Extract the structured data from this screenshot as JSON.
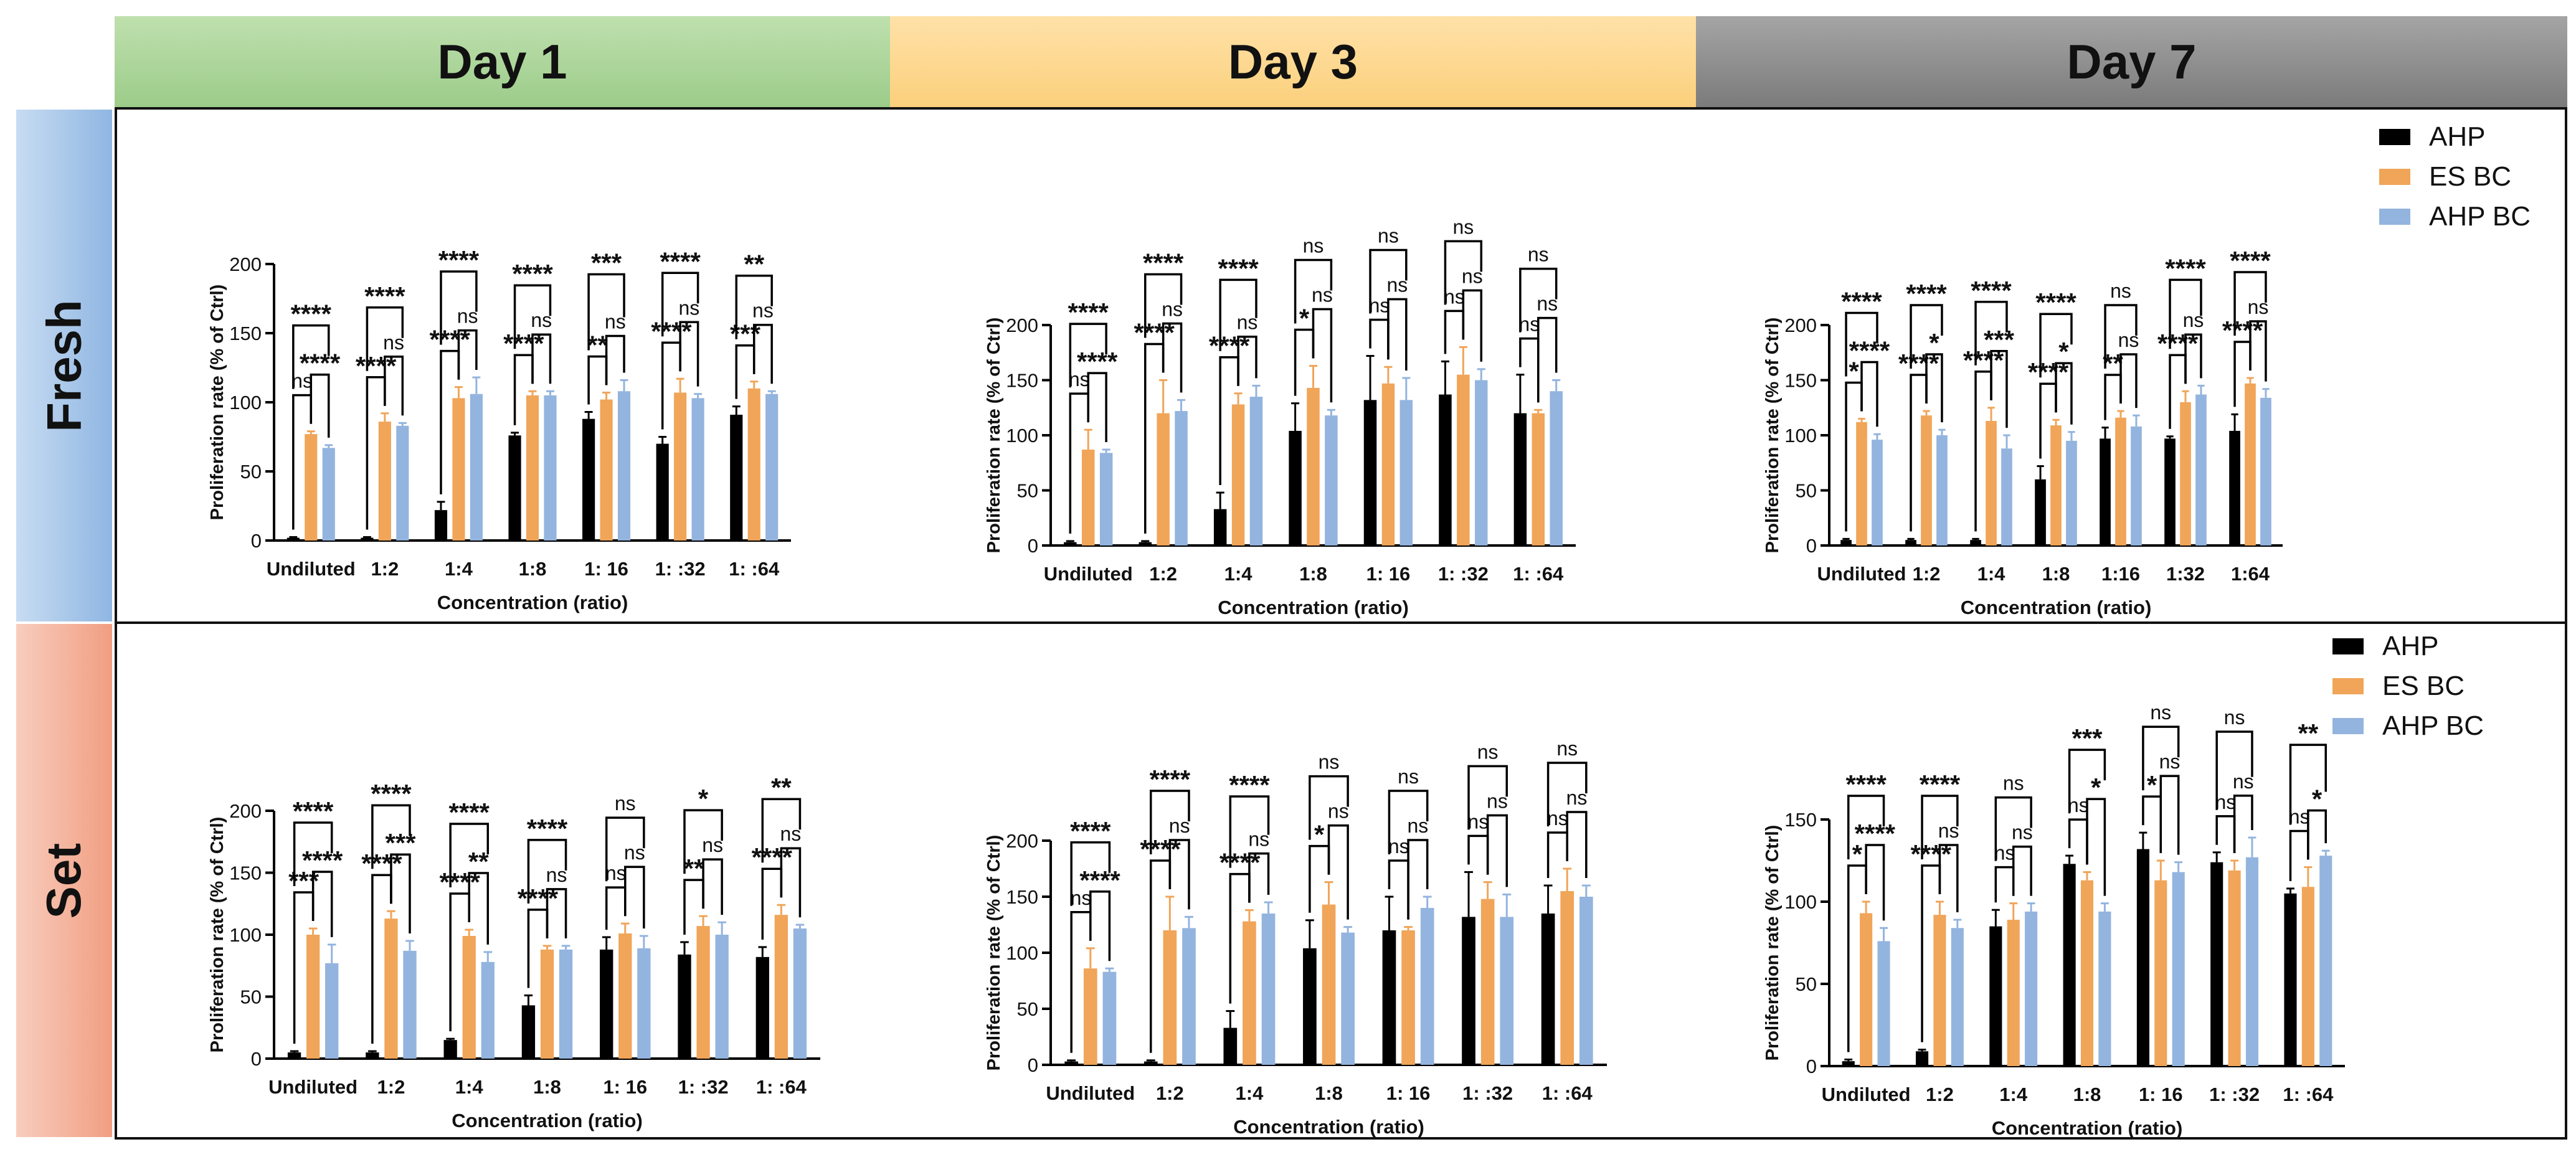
{
  "columns": [
    "Day 1",
    "Day 3",
    "Day 7"
  ],
  "rows": [
    "Fresh",
    "Set"
  ],
  "colors": {
    "AHP": "#000000",
    "ES BC": "#F0A559",
    "AHP BC": "#93B4DE",
    "day1_header": "#A9D39B",
    "day3_header": "#FCD78F",
    "day7_header": "#8E8E8E",
    "fresh_header": "#9DC0E5",
    "set_header": "#F4A98F"
  },
  "legend": [
    "AHP",
    "ES BC",
    "AHP BC"
  ],
  "chart_data": [
    {
      "type": "bar",
      "panel": "Fresh / Day 1",
      "categories": [
        "Undiluted",
        "1:2",
        "1:4",
        "1:8",
        "1: 16",
        "1: :32",
        "1: :64"
      ],
      "xlabel": "Concentration (ratio)",
      "ylabel": "Proliferation rate (% of Ctrl)",
      "ylim": [
        0,
        200
      ],
      "yticks": [
        "0",
        "50",
        "100",
        "150",
        "200"
      ],
      "series": [
        {
          "name": "AHP",
          "values": [
            2,
            2,
            22,
            76,
            88,
            70,
            91
          ],
          "errors": [
            0.5,
            0.5,
            6,
            2,
            5,
            5,
            6
          ]
        },
        {
          "name": "ES BC",
          "values": [
            77,
            86,
            103,
            105,
            102,
            107,
            110
          ],
          "errors": [
            2,
            6,
            8,
            3,
            5,
            10,
            5
          ]
        },
        {
          "name": "AHP BC",
          "values": [
            67,
            83,
            106,
            105,
            108,
            103,
            106
          ],
          "errors": [
            2,
            2,
            12,
            3,
            8,
            3,
            2
          ]
        }
      ],
      "annotations": [
        [
          "****",
          "ns",
          "****"
        ],
        [
          "****",
          "****",
          "ns"
        ],
        [
          "****",
          "****",
          "ns"
        ],
        [
          "****",
          "****",
          "ns"
        ],
        [
          "***",
          "**",
          "ns"
        ],
        [
          "****",
          "****",
          "ns"
        ],
        [
          "**",
          "***",
          "ns"
        ]
      ]
    },
    {
      "type": "bar",
      "panel": "Fresh / Day 3",
      "categories": [
        "Undiluted",
        "1:2",
        "1:4",
        "1:8",
        "1: 16",
        "1: :32",
        "1: :64"
      ],
      "xlabel": "Concentration (ratio)",
      "ylabel": "Proliferation rate (% of Ctrl)",
      "ylim": [
        0,
        200
      ],
      "yticks": [
        "0",
        "50",
        "100",
        "150",
        "200"
      ],
      "series": [
        {
          "name": "AHP",
          "values": [
            3,
            3,
            33,
            104,
            132,
            137,
            120
          ],
          "errors": [
            1,
            1,
            15,
            25,
            40,
            30,
            35
          ]
        },
        {
          "name": "ES BC",
          "values": [
            87,
            120,
            128,
            143,
            147,
            155,
            120
          ],
          "errors": [
            18,
            30,
            10,
            20,
            15,
            25,
            3
          ]
        },
        {
          "name": "AHP BC",
          "values": [
            84,
            122,
            135,
            118,
            132,
            150,
            140
          ],
          "errors": [
            3,
            10,
            10,
            5,
            20,
            10,
            10
          ]
        }
      ],
      "annotations": [
        [
          "****",
          "ns",
          "****"
        ],
        [
          "****",
          "****",
          "ns"
        ],
        [
          "****",
          "****",
          "ns"
        ],
        [
          "ns",
          "*",
          "ns"
        ],
        [
          "ns",
          "ns",
          "ns"
        ],
        [
          "ns",
          "ns",
          "ns"
        ],
        [
          "ns",
          "ns",
          "ns"
        ]
      ]
    },
    {
      "type": "bar",
      "panel": "Fresh / Day 7",
      "categories": [
        "Undiluted",
        "1:2",
        "1:4",
        "1:8",
        "1:16",
        "1:32",
        "1:64"
      ],
      "xlabel": "Concentration (ratio)",
      "ylabel": "Proliferation rate (% of Ctrl)",
      "ylim": [
        0,
        200
      ],
      "yticks": [
        "0",
        "50",
        "100",
        "150",
        "200"
      ],
      "series": [
        {
          "name": "AHP",
          "values": [
            5,
            5,
            5,
            60,
            97,
            97,
            104
          ],
          "errors": [
            1,
            1,
            1,
            12,
            10,
            2,
            15
          ]
        },
        {
          "name": "ES BC",
          "values": [
            112,
            118,
            113,
            109,
            116,
            130,
            147
          ],
          "errors": [
            3,
            4,
            12,
            5,
            6,
            10,
            5
          ]
        },
        {
          "name": "AHP BC",
          "values": [
            96,
            100,
            88,
            95,
            108,
            137,
            134
          ],
          "errors": [
            5,
            5,
            12,
            8,
            10,
            8,
            8
          ]
        }
      ],
      "annotations": [
        [
          "****",
          "*",
          "****"
        ],
        [
          "****",
          "****",
          "*"
        ],
        [
          "****",
          "****",
          "***"
        ],
        [
          "****",
          "****",
          "*"
        ],
        [
          "ns",
          "**",
          "ns"
        ],
        [
          "****",
          "****",
          "ns"
        ],
        [
          "****",
          "****",
          "ns"
        ]
      ]
    },
    {
      "type": "bar",
      "panel": "Set / Day 1",
      "categories": [
        "Undiluted",
        "1:2",
        "1:4",
        "1:8",
        "1: 16",
        "1: :32",
        "1: :64"
      ],
      "xlabel": "Concentration (ratio)",
      "ylabel": "Proliferation rate (% of Ctrl)",
      "ylim": [
        0,
        200
      ],
      "yticks": [
        "0",
        "50",
        "100",
        "150",
        "200"
      ],
      "series": [
        {
          "name": "AHP",
          "values": [
            5,
            5,
            15,
            43,
            88,
            84,
            82
          ],
          "errors": [
            1,
            1,
            1,
            8,
            10,
            10,
            8
          ]
        },
        {
          "name": "ES BC",
          "values": [
            100,
            113,
            99,
            88,
            101,
            107,
            116
          ],
          "errors": [
            5,
            6,
            5,
            3,
            8,
            8,
            8
          ]
        },
        {
          "name": "AHP BC",
          "values": [
            77,
            87,
            78,
            88,
            89,
            100,
            105
          ],
          "errors": [
            15,
            8,
            8,
            3,
            10,
            10,
            3
          ]
        }
      ],
      "annotations": [
        [
          "****",
          "***",
          "****"
        ],
        [
          "****",
          "****",
          "***"
        ],
        [
          "****",
          "****",
          "**"
        ],
        [
          "****",
          "****",
          "ns"
        ],
        [
          "ns",
          "ns",
          "ns"
        ],
        [
          "*",
          "**",
          "ns"
        ],
        [
          "**",
          "****",
          "ns"
        ]
      ]
    },
    {
      "type": "bar",
      "panel": "Set / Day 3",
      "categories": [
        "Undiluted",
        "1:2",
        "1:4",
        "1:8",
        "1: 16",
        "1: :32",
        "1: :64"
      ],
      "xlabel": "Concentration (ratio)",
      "ylabel": "Proliferation rate (% of Ctrl)",
      "ylim": [
        0,
        200
      ],
      "yticks": [
        "0",
        "50",
        "100",
        "150",
        "200"
      ],
      "series": [
        {
          "name": "AHP",
          "values": [
            3,
            3,
            33,
            104,
            120,
            132,
            135
          ],
          "errors": [
            1,
            1,
            15,
            25,
            30,
            40,
            25
          ]
        },
        {
          "name": "ES BC",
          "values": [
            86,
            120,
            128,
            143,
            120,
            148,
            155
          ],
          "errors": [
            18,
            30,
            10,
            20,
            3,
            15,
            20
          ]
        },
        {
          "name": "AHP BC",
          "values": [
            83,
            122,
            135,
            118,
            140,
            132,
            150
          ],
          "errors": [
            3,
            10,
            10,
            5,
            10,
            20,
            10
          ]
        }
      ],
      "annotations": [
        [
          "****",
          "ns",
          "****"
        ],
        [
          "****",
          "****",
          "ns"
        ],
        [
          "****",
          "****",
          "ns"
        ],
        [
          "ns",
          "*",
          "ns"
        ],
        [
          "ns",
          "ns",
          "ns"
        ],
        [
          "ns",
          "ns",
          "ns"
        ],
        [
          "ns",
          "ns",
          "ns"
        ]
      ]
    },
    {
      "type": "bar",
      "panel": "Set / Day 7",
      "categories": [
        "Undiluted",
        "1:2",
        "1:4",
        "1:8",
        "1: 16",
        "1: :32",
        "1: :64"
      ],
      "xlabel": "Concentration (ratio)",
      "ylabel": "Proliferation rate (% of Ctrl)",
      "ylim": [
        0,
        150
      ],
      "yticks": [
        "0",
        "50",
        "100",
        "150"
      ],
      "series": [
        {
          "name": "AHP",
          "values": [
            3,
            9,
            85,
            123,
            132,
            124,
            105
          ],
          "errors": [
            1,
            1,
            10,
            5,
            10,
            6,
            3
          ]
        },
        {
          "name": "ES BC",
          "values": [
            93,
            92,
            89,
            113,
            113,
            119,
            109
          ],
          "errors": [
            7,
            8,
            10,
            5,
            12,
            6,
            12
          ]
        },
        {
          "name": "AHP BC",
          "values": [
            76,
            84,
            94,
            94,
            118,
            127,
            128
          ],
          "errors": [
            8,
            5,
            5,
            5,
            6,
            12,
            3
          ]
        }
      ],
      "annotations": [
        [
          "****",
          "*",
          "****"
        ],
        [
          "****",
          "****",
          "ns"
        ],
        [
          "ns",
          "ns",
          "ns"
        ],
        [
          "***",
          "ns",
          "*"
        ],
        [
          "ns",
          "*",
          "ns"
        ],
        [
          "ns",
          "ns",
          "ns"
        ],
        [
          "**",
          "ns",
          "*"
        ]
      ]
    }
  ]
}
